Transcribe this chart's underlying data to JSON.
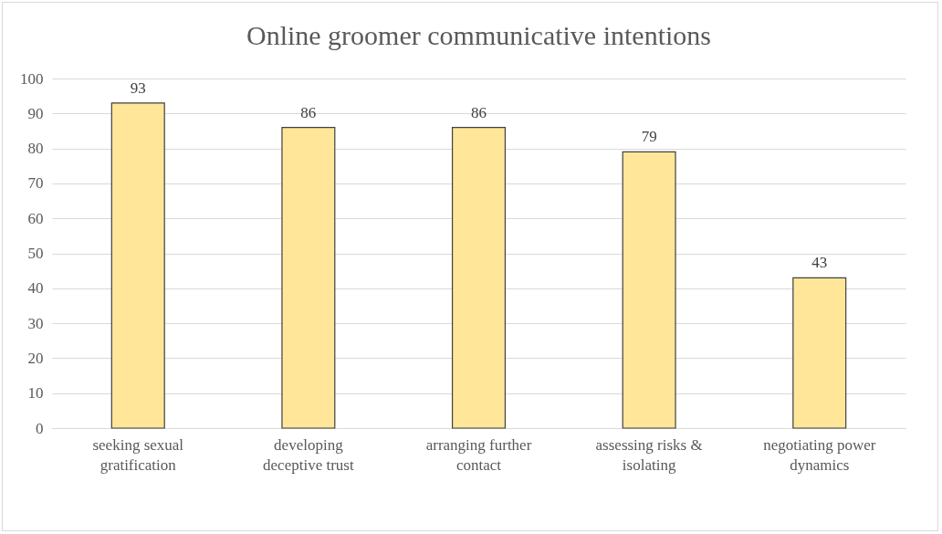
{
  "chart_data": {
    "type": "bar",
    "title": "Online groomer communicative intentions",
    "categories": [
      "seeking sexual gratification",
      "developing deceptive trust",
      "arranging further contact",
      "assessing risks & isolating",
      "negotiating power dynamics"
    ],
    "values": [
      93,
      86,
      86,
      79,
      43
    ],
    "color": "#ffe699",
    "ylim": [
      0,
      100
    ],
    "yticks": [
      0,
      10,
      20,
      30,
      40,
      50,
      60,
      70,
      80,
      90,
      100
    ],
    "grid": "y",
    "data_labels": true
  }
}
